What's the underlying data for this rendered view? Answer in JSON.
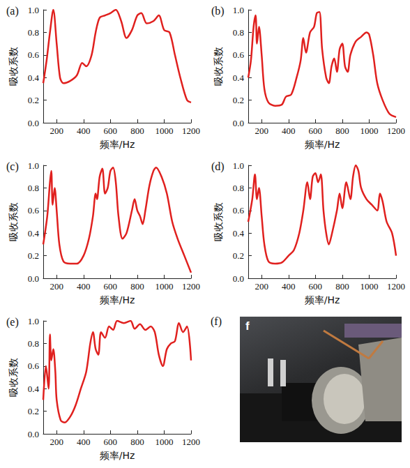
{
  "chart_data": [
    {
      "type": "line",
      "panel": "(a)",
      "x_label": "频率/Hz",
      "y_label": "吸收系数",
      "color": "#e0201e",
      "xlim": [
        100,
        1200
      ],
      "xticks": [
        200,
        400,
        600,
        800,
        1000,
        1200
      ],
      "ylim": [
        0,
        1
      ],
      "yticks": [
        {
          "value": 0,
          "label": "0.0"
        },
        {
          "value": 0.2,
          "label": "0.2"
        },
        {
          "value": 0.4,
          "label": "0.4"
        },
        {
          "value": 0.6,
          "label": "0.6"
        },
        {
          "value": 0.8,
          "label": "0.8"
        },
        {
          "value": 1,
          "label": "1.0"
        }
      ],
      "x": [
        100,
        125,
        150,
        175,
        200,
        225,
        250,
        300,
        350,
        390,
        420,
        460,
        490,
        520,
        560,
        600,
        640,
        680,
        720,
        760,
        800,
        830,
        870,
        920,
        960,
        1000,
        1040,
        1080,
        1120,
        1170,
        1200
      ],
      "values": [
        0.35,
        0.55,
        0.8,
        1.0,
        0.7,
        0.4,
        0.35,
        0.37,
        0.42,
        0.53,
        0.5,
        0.6,
        0.8,
        0.93,
        0.95,
        0.97,
        1.0,
        0.9,
        0.75,
        0.82,
        0.95,
        0.97,
        0.88,
        0.9,
        0.95,
        0.82,
        0.8,
        0.6,
        0.4,
        0.2,
        0.18
      ]
    },
    {
      "type": "line",
      "panel": "(b)",
      "x_label": "频率/Hz",
      "y_label": "吸收系数",
      "color": "#e0201e",
      "xlim": [
        100,
        1200
      ],
      "xticks": [
        200,
        400,
        600,
        800,
        1000,
        1200
      ],
      "ylim": [
        0,
        1
      ],
      "yticks": [
        {
          "value": 0,
          "label": "0.0"
        },
        {
          "value": 0.2,
          "label": "0.2"
        },
        {
          "value": 0.4,
          "label": "0.4"
        },
        {
          "value": 0.6,
          "label": "0.6"
        },
        {
          "value": 0.8,
          "label": "0.8"
        },
        {
          "value": 1,
          "label": "1.0"
        }
      ],
      "x": [
        100,
        120,
        140,
        155,
        165,
        180,
        200,
        220,
        250,
        300,
        350,
        380,
        420,
        460,
        490,
        510,
        530,
        560,
        590,
        610,
        630,
        650,
        680,
        700,
        720,
        740,
        760,
        780,
        800,
        820,
        840,
        860,
        900,
        940,
        980,
        1000,
        1030,
        1060,
        1100,
        1150,
        1200
      ],
      "values": [
        0.4,
        0.55,
        0.85,
        0.95,
        0.7,
        0.85,
        0.6,
        0.3,
        0.18,
        0.15,
        0.16,
        0.23,
        0.25,
        0.4,
        0.55,
        0.75,
        0.62,
        0.8,
        0.85,
        0.97,
        0.98,
        0.65,
        0.4,
        0.35,
        0.5,
        0.57,
        0.45,
        0.65,
        0.7,
        0.5,
        0.45,
        0.6,
        0.72,
        0.76,
        0.8,
        0.78,
        0.6,
        0.35,
        0.2,
        0.08,
        0.05
      ]
    },
    {
      "type": "line",
      "panel": "(c)",
      "x_label": "频率/Hz",
      "y_label": "吸收系数",
      "color": "#e0201e",
      "xlim": [
        100,
        1200
      ],
      "xticks": [
        200,
        400,
        600,
        800,
        1000,
        1200
      ],
      "ylim": [
        0,
        1
      ],
      "yticks": [
        {
          "value": 0,
          "label": "0.0"
        },
        {
          "value": 0.2,
          "label": "0.2"
        },
        {
          "value": 0.4,
          "label": "0.4"
        },
        {
          "value": 0.6,
          "label": "0.6"
        },
        {
          "value": 0.8,
          "label": "0.8"
        },
        {
          "value": 1,
          "label": "1.0"
        }
      ],
      "x": [
        100,
        130,
        150,
        160,
        170,
        185,
        200,
        220,
        250,
        300,
        350,
        400,
        440,
        470,
        490,
        500,
        520,
        540,
        560,
        580,
        600,
        620,
        640,
        660,
        690,
        720,
        760,
        780,
        800,
        820,
        840,
        860,
        890,
        920,
        940,
        980,
        1020,
        1060,
        1100,
        1150,
        1200
      ],
      "values": [
        0.3,
        0.55,
        0.85,
        0.95,
        0.65,
        0.8,
        0.6,
        0.3,
        0.15,
        0.13,
        0.13,
        0.2,
        0.35,
        0.55,
        0.75,
        0.7,
        0.9,
        0.97,
        0.75,
        0.8,
        0.95,
        0.98,
        0.85,
        0.55,
        0.35,
        0.4,
        0.6,
        0.7,
        0.6,
        0.55,
        0.48,
        0.6,
        0.82,
        0.95,
        0.98,
        0.9,
        0.75,
        0.5,
        0.35,
        0.2,
        0.05
      ]
    },
    {
      "type": "line",
      "panel": "(d)",
      "x_label": "频率/Hz",
      "y_label": "吸收系数",
      "color": "#e0201e",
      "xlim": [
        100,
        1200
      ],
      "xticks": [
        200,
        400,
        600,
        800,
        1000,
        1200
      ],
      "ylim": [
        0,
        1
      ],
      "yticks": [
        {
          "value": 0,
          "label": "0.0"
        },
        {
          "value": 0.2,
          "label": "0.2"
        },
        {
          "value": 0.4,
          "label": "0.4"
        },
        {
          "value": 0.6,
          "label": "0.6"
        },
        {
          "value": 0.8,
          "label": "0.8"
        },
        {
          "value": 1,
          "label": "1.0"
        }
      ],
      "x": [
        100,
        130,
        150,
        165,
        180,
        200,
        220,
        250,
        300,
        350,
        400,
        440,
        480,
        510,
        540,
        560,
        580,
        600,
        620,
        640,
        660,
        680,
        700,
        720,
        760,
        780,
        800,
        830,
        860,
        880,
        900,
        920,
        940,
        980,
        1020,
        1060,
        1080,
        1100,
        1130,
        1170,
        1200
      ],
      "values": [
        0.5,
        0.7,
        0.92,
        0.7,
        0.8,
        0.55,
        0.3,
        0.15,
        0.13,
        0.14,
        0.2,
        0.25,
        0.4,
        0.6,
        0.85,
        0.7,
        0.9,
        0.93,
        0.85,
        0.92,
        0.6,
        0.4,
        0.3,
        0.38,
        0.6,
        0.75,
        0.62,
        0.85,
        0.7,
        0.9,
        1.0,
        0.95,
        0.8,
        0.7,
        0.65,
        0.6,
        0.75,
        0.68,
        0.5,
        0.4,
        0.2
      ]
    },
    {
      "type": "line",
      "panel": "(e)",
      "x_label": "频率/Hz",
      "y_label": "吸收系数",
      "color": "#e0201e",
      "xlim": [
        100,
        1200
      ],
      "xticks": [
        200,
        400,
        600,
        800,
        1000,
        1200
      ],
      "ylim": [
        0,
        1
      ],
      "yticks": [
        {
          "value": 0,
          "label": "0.0"
        },
        {
          "value": 0.2,
          "label": "0.2"
        },
        {
          "value": 0.4,
          "label": "0.4"
        },
        {
          "value": 0.6,
          "label": "0.6"
        },
        {
          "value": 0.8,
          "label": "0.8"
        },
        {
          "value": 1,
          "label": "1.0"
        }
      ],
      "x": [
        100,
        120,
        140,
        150,
        160,
        175,
        190,
        200,
        230,
        260,
        300,
        340,
        380,
        420,
        450,
        470,
        490,
        510,
        530,
        560,
        590,
        620,
        650,
        700,
        750,
        780,
        820,
        860,
        900,
        930,
        960,
        990,
        1020,
        1050,
        1080,
        1110,
        1140,
        1170,
        1200
      ],
      "values": [
        0.3,
        0.6,
        0.4,
        0.88,
        0.65,
        0.75,
        0.55,
        0.3,
        0.12,
        0.1,
        0.15,
        0.25,
        0.4,
        0.55,
        0.8,
        0.9,
        0.75,
        0.7,
        0.9,
        0.85,
        0.95,
        0.92,
        1.0,
        0.98,
        1.0,
        0.93,
        0.97,
        0.92,
        0.95,
        0.9,
        0.7,
        0.6,
        0.75,
        0.8,
        0.82,
        0.98,
        0.9,
        0.95,
        0.65
      ]
    }
  ],
  "photo": {
    "panel": "(f)",
    "text": "f"
  }
}
